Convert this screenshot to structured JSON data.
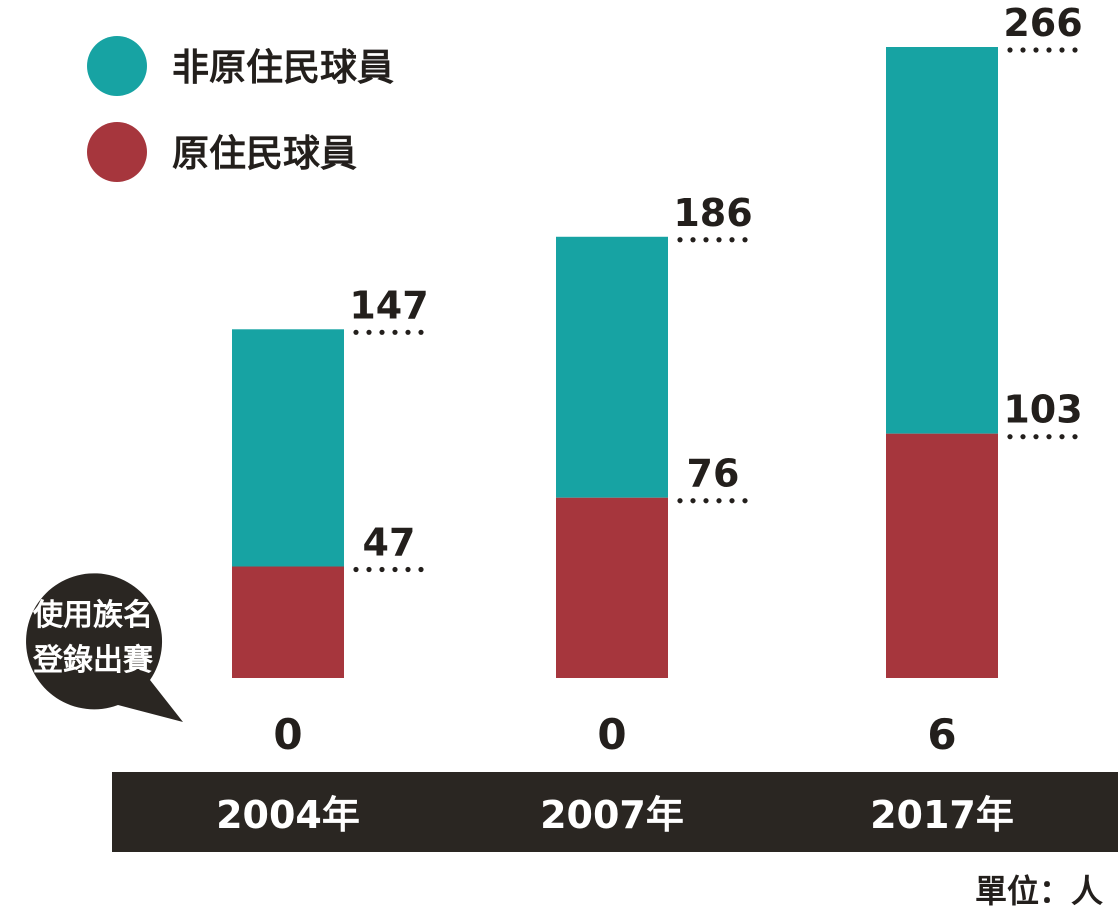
{
  "colors": {
    "non_indigenous": "#17a3a3",
    "indigenous": "#a6363d",
    "dark": "#2a2622",
    "text": "#231f1c",
    "background": "#ffffff"
  },
  "legend": {
    "position": "top-left",
    "items": [
      {
        "label": "非原住民球員",
        "color": "#17a3a3"
      },
      {
        "label": "原住民球員",
        "color": "#a6363d"
      }
    ]
  },
  "callout": {
    "line1": "使用族名",
    "line2": "登錄出賽"
  },
  "unit_note": "單位：人",
  "chart_data": {
    "type": "bar",
    "stacked": true,
    "categories": [
      "2004年",
      "2007年",
      "2017年"
    ],
    "series": [
      {
        "name": "原住民球員",
        "values": [
          47,
          76,
          103
        ],
        "color": "#a6363d"
      },
      {
        "name": "非原住民球員",
        "values": [
          100,
          110,
          163
        ],
        "color": "#17a3a3"
      }
    ],
    "totals": [
      147,
      186,
      266
    ],
    "totals_labels": [
      "147",
      "186",
      "266"
    ],
    "indigenous_labels": [
      "47",
      "76",
      "103"
    ],
    "name_registered": [
      0,
      0,
      6
    ],
    "name_registered_labels": [
      "0",
      "0",
      "6"
    ],
    "grid": false,
    "y_axis_visible": false
  }
}
